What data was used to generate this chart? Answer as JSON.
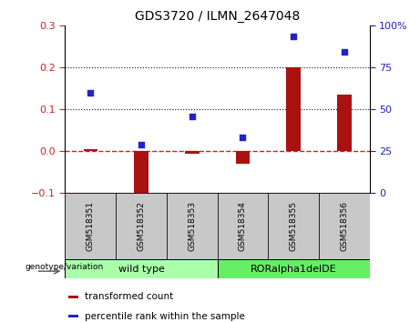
{
  "title": "GDS3720 / ILMN_2647048",
  "categories": [
    "GSM518351",
    "GSM518352",
    "GSM518353",
    "GSM518354",
    "GSM518355",
    "GSM518356"
  ],
  "red_bars": [
    0.005,
    -0.12,
    -0.005,
    -0.03,
    0.2,
    0.135
  ],
  "blue_dots": [
    0.14,
    0.015,
    0.083,
    0.033,
    0.275,
    0.238
  ],
  "ylim": [
    -0.1,
    0.3
  ],
  "yticks_left": [
    -0.1,
    0.0,
    0.1,
    0.2,
    0.3
  ],
  "yticks_right_labels": [
    "0",
    "25",
    "50",
    "75",
    "100%"
  ],
  "yright_positions": [
    -0.1,
    0.0,
    0.1,
    0.2,
    0.3
  ],
  "bar_color": "#aa1111",
  "dot_color": "#2222cc",
  "zero_line_color": "#cc2222",
  "grid_color": "#111111",
  "genotype_wildtype": "wild type",
  "genotype_mutant": "RORalpha1delDE",
  "legend_red": "transformed count",
  "legend_blue": "percentile rank within the sample",
  "left_label_color": "#cc2222",
  "right_label_color": "#2222bb",
  "bg_wildtype": "#aaffaa",
  "bg_mutant": "#66ee66",
  "xtick_bg": "#c8c8c8"
}
